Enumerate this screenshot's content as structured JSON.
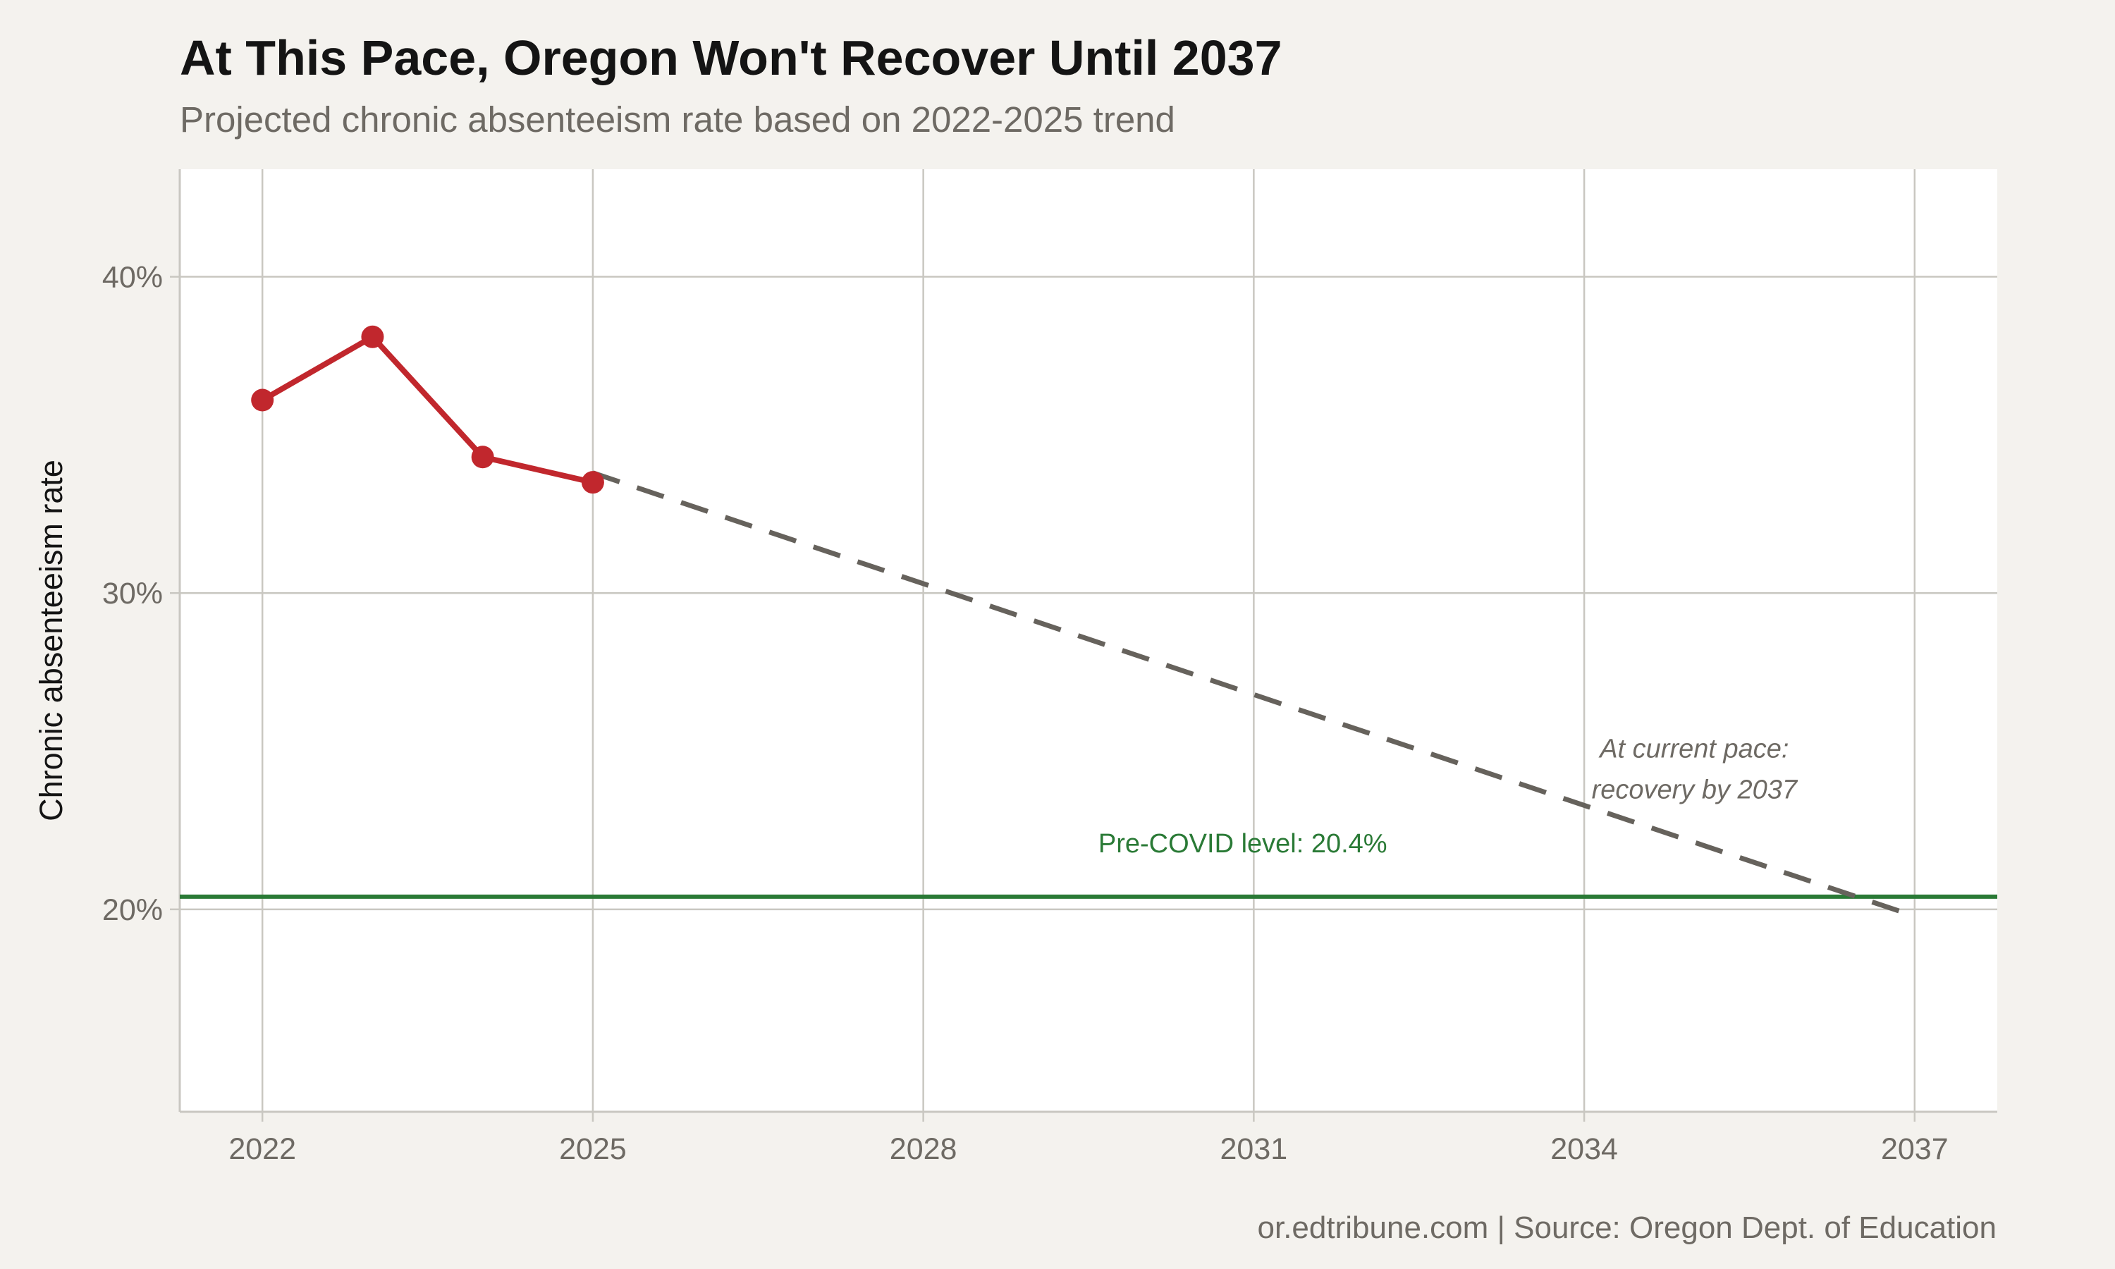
{
  "title": "At This Pace, Oregon Won't Recover Until 2037",
  "subtitle": "Projected chronic absenteeism rate based on 2022-2025 trend",
  "caption": "or.edtribune.com | Source: Oregon Dept. of Education",
  "colors": {
    "background": "#f4f2ee",
    "panel": "#ffffff",
    "grid": "#c9c7c1",
    "actual": "#c1272d",
    "projection": "#66625c",
    "reference": "#2a7a36",
    "muted_text": "#6e6a64"
  },
  "chart_data": {
    "type": "line",
    "xlabel": "",
    "ylabel": "Chronic absenteeism rate",
    "xlim": [
      2021.25,
      2037.75
    ],
    "ylim": [
      13.6,
      43.4
    ],
    "x_ticks": [
      2022,
      2025,
      2028,
      2031,
      2034,
      2037
    ],
    "x_tick_labels": [
      "2022",
      "2025",
      "2028",
      "2031",
      "2034",
      "2037"
    ],
    "y_ticks": [
      20,
      30,
      40
    ],
    "y_tick_labels": [
      "20%",
      "30%",
      "40%"
    ],
    "grid": true,
    "series": [
      {
        "style": "solid-with-markers",
        "x": [
          2022,
          2023,
          2024,
          2025
        ],
        "y": [
          36.1,
          38.1,
          34.3,
          33.5
        ]
      },
      {
        "style": "dashed",
        "x": [
          2025,
          2036.9
        ],
        "y": [
          33.8,
          19.9
        ]
      }
    ],
    "reference_line": {
      "y": 20.4,
      "label": "Pre-COVID level: 20.4%",
      "label_x": 2030.9,
      "label_y": 21.8
    },
    "annotation": {
      "lines": [
        "At current pace:",
        "recovery by 2037"
      ],
      "x": 2035.0,
      "y": 24.8
    }
  }
}
